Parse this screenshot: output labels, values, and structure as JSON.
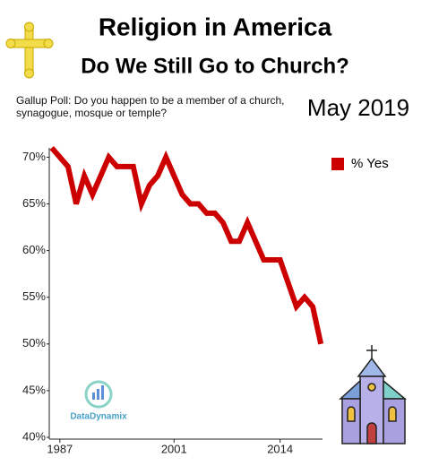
{
  "chart_data": {
    "type": "line",
    "title": "Religion in America",
    "subtitle": "Do We Still Go to Church?",
    "note": "Gallup Poll: Do you happen to be a member of a church, synagogue, mosque or temple?",
    "date_label": "May 2019",
    "watermark": "DataDynamix",
    "x": [
      1986,
      1988,
      1989,
      1990,
      1991,
      1993,
      1994,
      1996,
      1997,
      1998,
      1999,
      2000,
      2001,
      2002,
      2003,
      2004,
      2005,
      2006,
      2007,
      2008,
      2009,
      2010,
      2011,
      2012,
      2014,
      2016,
      2017,
      2018,
      2019
    ],
    "series": [
      {
        "name": "% Yes",
        "color": "#cc0000",
        "values": [
          71,
          69,
          65,
          68,
          66,
          70,
          69,
          69,
          65,
          67,
          68,
          70,
          68,
          66,
          65,
          65,
          64,
          64,
          63,
          61,
          61,
          63,
          61,
          59,
          59,
          54,
          55,
          54,
          50
        ]
      }
    ],
    "xlim": [
      1985.7,
      2019.2
    ],
    "ylim": [
      40,
      71
    ],
    "xticks": [
      1987,
      2001,
      2014
    ],
    "yticks": [
      {
        "value": 40,
        "label": "40%"
      },
      {
        "value": 45,
        "label": "45%"
      },
      {
        "value": 50,
        "label": "50%"
      },
      {
        "value": 55,
        "label": "55%"
      },
      {
        "value": 60,
        "label": "60%"
      },
      {
        "value": 65,
        "label": "65%"
      },
      {
        "value": 70,
        "label": "70%"
      }
    ],
    "legend": "upper right",
    "grid": false
  }
}
